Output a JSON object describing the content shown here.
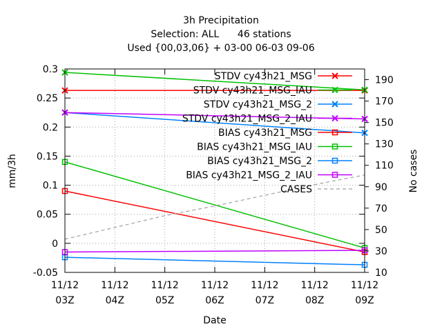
{
  "chart_data": {
    "type": "line",
    "title_lines": [
      "3h Precipitation",
      "Selection: ALL      46 stations",
      "Used {00,03,06} + 03-00 06-03 09-06"
    ],
    "xlabel": "Date",
    "ylabel": "mm/3h",
    "y2label": "No cases",
    "x_ticks": [
      {
        "top": "11/12",
        "bottom": "03Z"
      },
      {
        "top": "11/12",
        "bottom": "04Z"
      },
      {
        "top": "11/12",
        "bottom": "05Z"
      },
      {
        "top": "11/12",
        "bottom": "06Z"
      },
      {
        "top": "11/12",
        "bottom": "07Z"
      },
      {
        "top": "11/12",
        "bottom": "08Z"
      },
      {
        "top": "11/12",
        "bottom": "09Z"
      }
    ],
    "x": [
      3,
      9
    ],
    "xlim": [
      3,
      9
    ],
    "ylim": [
      -0.05,
      0.3
    ],
    "y_ticks": [
      "-0.05",
      "0",
      "0.05",
      "0.1",
      "0.15",
      "0.2",
      "0.25",
      "0.3"
    ],
    "y_tick_values": [
      -0.05,
      0,
      0.05,
      0.1,
      0.15,
      0.2,
      0.25,
      0.3
    ],
    "y2lim": [
      10,
      200
    ],
    "y2_ticks": [
      "10",
      "30",
      "50",
      "70",
      "90",
      "110",
      "130",
      "150",
      "170",
      "190"
    ],
    "y2_tick_values": [
      10,
      30,
      50,
      70,
      90,
      110,
      130,
      150,
      170,
      190
    ],
    "grid": true,
    "legend_position": "top-right",
    "series": [
      {
        "name": "STDV cy43h21_MSG",
        "color": "#ff0000",
        "marker": "x",
        "values": [
          0.263,
          0.263
        ]
      },
      {
        "name": "STDV cy43h21_MSG_IAU",
        "color": "#00c000",
        "marker": "x",
        "values": [
          0.294,
          0.264
        ]
      },
      {
        "name": "STDV cy43h21_MSG_2",
        "color": "#0080ff",
        "marker": "x",
        "values": [
          0.225,
          0.19
        ]
      },
      {
        "name": "STDV cy43h21_MSG_2_IAU",
        "color": "#c000ff",
        "marker": "x",
        "values": [
          0.225,
          0.214
        ]
      },
      {
        "name": "BIAS cy43h21_MSG",
        "color": "#ff0000",
        "marker": "square",
        "values": [
          0.09,
          -0.015
        ]
      },
      {
        "name": "BIAS cy43h21_MSG_IAU",
        "color": "#00c000",
        "marker": "square",
        "values": [
          0.14,
          -0.008
        ]
      },
      {
        "name": "BIAS cy43h21_MSG_2",
        "color": "#0080ff",
        "marker": "square",
        "values": [
          -0.024,
          -0.037
        ]
      },
      {
        "name": "BIAS cy43h21_MSG_2_IAU",
        "color": "#c000ff",
        "marker": "square",
        "values": [
          -0.015,
          -0.012
        ]
      },
      {
        "name": "CASES",
        "color": "#a0a0a0",
        "marker": "none",
        "dashed": true,
        "axis": "y2",
        "x": [
          3,
          4,
          5,
          6,
          7,
          8,
          9
        ],
        "values": [
          41,
          52,
          63,
          72,
          82,
          92,
          101
        ]
      }
    ]
  }
}
